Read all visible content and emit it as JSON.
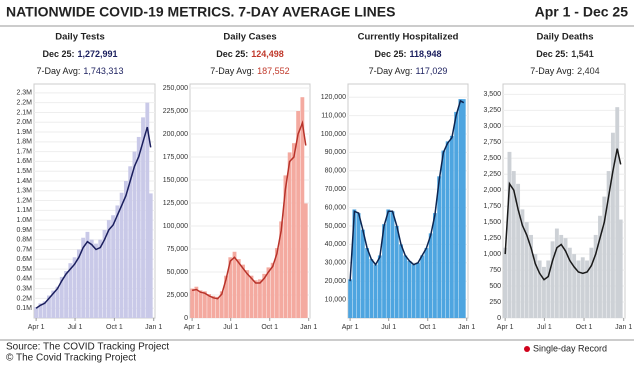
{
  "title": "NATIONWIDE COVID-19 METRICS. 7-DAY AVERAGE LINES",
  "date_range": "Apr 1 - Dec 25",
  "source": "Source: The COVID Tracking Project",
  "credit": "© The Covid Tracking Project",
  "record_legend": "Single-day Record",
  "chart_data": [
    {
      "type": "bar-line",
      "title": "Daily Tests",
      "latest_label": "Dec 25:",
      "latest_value": "1,272,991",
      "avg_label": "7-Day Avg:",
      "avg_value": "1,743,313",
      "bar_color": "#c9c9e8",
      "line_color": "#1b1f5e",
      "value_color": "#1b1f5e",
      "x": [
        0,
        10,
        20,
        30,
        40,
        50,
        60,
        70,
        80,
        90,
        100,
        110,
        120,
        130,
        140,
        150,
        160,
        170,
        180,
        190,
        200,
        210,
        220,
        230,
        240,
        250,
        260,
        268
      ],
      "values": [
        110000,
        150000,
        170000,
        230000,
        280000,
        320000,
        420000,
        480000,
        560000,
        620000,
        700000,
        820000,
        880000,
        800000,
        760000,
        800000,
        900000,
        1000000,
        1050000,
        1150000,
        1280000,
        1400000,
        1550000,
        1700000,
        1850000,
        2050000,
        2200000,
        1272991
      ],
      "line_values": [
        100000,
        130000,
        150000,
        200000,
        250000,
        300000,
        380000,
        450000,
        500000,
        550000,
        620000,
        720000,
        780000,
        750000,
        700000,
        720000,
        800000,
        900000,
        950000,
        1050000,
        1150000,
        1250000,
        1400000,
        1550000,
        1650000,
        1800000,
        1950000,
        1743313
      ],
      "xlim": [
        -5,
        278
      ],
      "xticks": [
        {
          "value": 0,
          "label": "Apr 1"
        },
        {
          "value": 91,
          "label": "Jul 1"
        },
        {
          "value": 183,
          "label": "Oct 1"
        },
        {
          "value": 275,
          "label": "Jan 1"
        }
      ],
      "ylim": [
        0,
        2350000
      ],
      "yticks": [
        {
          "value": 100000,
          "label": "0.1M"
        },
        {
          "value": 200000,
          "label": "0.2M"
        },
        {
          "value": 300000,
          "label": "0.3M"
        },
        {
          "value": 400000,
          "label": "0.4M"
        },
        {
          "value": 500000,
          "label": "0.5M"
        },
        {
          "value": 600000,
          "label": "0.6M"
        },
        {
          "value": 700000,
          "label": "0.7M"
        },
        {
          "value": 800000,
          "label": "0.8M"
        },
        {
          "value": 900000,
          "label": "0.9M"
        },
        {
          "value": 1000000,
          "label": "1.0M"
        },
        {
          "value": 1100000,
          "label": "1.1M"
        },
        {
          "value": 1200000,
          "label": "1.2M"
        },
        {
          "value": 1300000,
          "label": "1.3M"
        },
        {
          "value": 1400000,
          "label": "1.4M"
        },
        {
          "value": 1500000,
          "label": "1.5M"
        },
        {
          "value": 1600000,
          "label": "1.6M"
        },
        {
          "value": 1700000,
          "label": "1.7M"
        },
        {
          "value": 1800000,
          "label": "1.8M"
        },
        {
          "value": 1900000,
          "label": "1.9M"
        },
        {
          "value": 2000000,
          "label": "2.0M"
        },
        {
          "value": 2100000,
          "label": "2.1M"
        },
        {
          "value": 2200000,
          "label": "2.2M"
        },
        {
          "value": 2300000,
          "label": "2.3M"
        }
      ]
    },
    {
      "type": "bar-line",
      "title": "Daily Cases",
      "latest_label": "Dec 25:",
      "latest_value": "124,498",
      "avg_label": "7-Day Avg:",
      "avg_value": "187,552",
      "bar_color": "#f4aaa0",
      "line_color": "#b8332a",
      "value_color": "#c0392b",
      "x": [
        0,
        10,
        20,
        30,
        40,
        50,
        60,
        70,
        80,
        90,
        100,
        110,
        120,
        130,
        140,
        150,
        160,
        170,
        180,
        190,
        200,
        210,
        220,
        230,
        240,
        250,
        260,
        268
      ],
      "values": [
        32000,
        34000,
        30000,
        29000,
        26000,
        24000,
        23000,
        29000,
        46000,
        66000,
        72000,
        64000,
        58000,
        52000,
        46000,
        41000,
        42000,
        48000,
        55000,
        60000,
        76000,
        105000,
        155000,
        180000,
        190000,
        225000,
        240000,
        124498
      ],
      "line_values": [
        30000,
        31000,
        28000,
        27000,
        24000,
        22000,
        21000,
        26000,
        42000,
        62000,
        66000,
        60000,
        54000,
        48000,
        43000,
        38000,
        38000,
        43000,
        50000,
        56000,
        70000,
        95000,
        140000,
        170000,
        175000,
        200000,
        212000,
        187552
      ],
      "xlim": [
        -5,
        278
      ],
      "xticks": [
        {
          "value": 0,
          "label": "Apr 1"
        },
        {
          "value": 91,
          "label": "Jul 1"
        },
        {
          "value": 183,
          "label": "Oct 1"
        },
        {
          "value": 275,
          "label": "Jan 1"
        }
      ],
      "ylim": [
        0,
        250000
      ],
      "yticks": [
        0,
        {
          "value": 25000,
          "label": "25,000"
        },
        {
          "value": 50000,
          "label": "50,000"
        },
        {
          "value": 75000,
          "label": "75,000"
        },
        {
          "value": 100000,
          "label": "100,000"
        },
        {
          "value": 125000,
          "label": "125,000"
        },
        {
          "value": 150000,
          "label": "150,000"
        },
        {
          "value": 175000,
          "label": "175,000"
        },
        {
          "value": 200000,
          "label": "200,000"
        },
        {
          "value": 225000,
          "label": "225,000"
        },
        {
          "value": 250000,
          "label": "250,000"
        }
      ]
    },
    {
      "type": "bar-line",
      "title": "Currently Hospitalized",
      "latest_label": "Dec 25:",
      "latest_value": "118,948",
      "avg_label": "7-Day Avg:",
      "avg_value": "117,029",
      "bar_color": "#4ea5e0",
      "line_color": "#0d2550",
      "value_color": "#1b1f5e",
      "x": [
        0,
        10,
        20,
        30,
        40,
        50,
        60,
        70,
        80,
        90,
        100,
        110,
        120,
        130,
        140,
        150,
        160,
        170,
        180,
        190,
        200,
        210,
        220,
        230,
        240,
        250,
        260,
        268
      ],
      "values": [
        21000,
        59000,
        57000,
        48000,
        38000,
        32000,
        29000,
        34000,
        51000,
        59000,
        58000,
        50000,
        40000,
        34000,
        31000,
        29000,
        30000,
        34000,
        38000,
        46000,
        57000,
        77000,
        91000,
        96000,
        99000,
        112000,
        119000,
        118948
      ],
      "line_values": [
        20000,
        58000,
        57000,
        48000,
        38000,
        32000,
        29000,
        33000,
        50000,
        58000,
        58000,
        50000,
        40000,
        34000,
        31000,
        29000,
        30000,
        34000,
        38000,
        45000,
        56000,
        75000,
        90000,
        95000,
        98000,
        110000,
        118000,
        117029
      ],
      "xlim": [
        -5,
        278
      ],
      "xticks": [
        {
          "value": 0,
          "label": "Apr 1"
        },
        {
          "value": 91,
          "label": "Jul 1"
        },
        {
          "value": 183,
          "label": "Oct 1"
        },
        {
          "value": 275,
          "label": "Jan 1"
        }
      ],
      "ylim": [
        0,
        125000
      ],
      "yticks": [
        {
          "value": 10000,
          "label": "10,000"
        },
        {
          "value": 20000,
          "label": "20,000"
        },
        {
          "value": 30000,
          "label": "30,000"
        },
        {
          "value": 40000,
          "label": "40,000"
        },
        {
          "value": 50000,
          "label": "50,000"
        },
        {
          "value": 60000,
          "label": "60,000"
        },
        {
          "value": 70000,
          "label": "70,000"
        },
        {
          "value": 80000,
          "label": "80,000"
        },
        {
          "value": 90000,
          "label": "90,000"
        },
        {
          "value": 100000,
          "label": "100,000"
        },
        {
          "value": 110000,
          "label": "110,000"
        },
        {
          "value": 120000,
          "label": "120,000"
        }
      ]
    },
    {
      "type": "bar-line",
      "title": "Daily Deaths",
      "latest_label": "Dec 25:",
      "latest_value": "1,541",
      "avg_label": "7-Day Avg:",
      "avg_value": "2,404",
      "bar_color": "#cdd1d6",
      "line_color": "#1a1a1a",
      "value_color": "#333333",
      "x": [
        0,
        10,
        20,
        30,
        40,
        50,
        60,
        70,
        80,
        90,
        100,
        110,
        120,
        130,
        140,
        150,
        160,
        170,
        180,
        190,
        200,
        210,
        220,
        230,
        240,
        250,
        260,
        268
      ],
      "values": [
        1100,
        2600,
        2300,
        2100,
        1700,
        1500,
        1300,
        1000,
        900,
        800,
        900,
        1200,
        1400,
        1300,
        1250,
        1100,
        1000,
        900,
        950,
        900,
        1100,
        1300,
        1600,
        1900,
        2300,
        2900,
        3300,
        1541
      ],
      "line_values": [
        1000,
        2100,
        2000,
        1700,
        1450,
        1300,
        1100,
        850,
        700,
        600,
        650,
        900,
        1100,
        1150,
        1050,
        900,
        800,
        720,
        700,
        720,
        820,
        1000,
        1250,
        1500,
        1900,
        2300,
        2650,
        2404
      ],
      "xlim": [
        -5,
        278
      ],
      "xticks": [
        {
          "value": 0,
          "label": "Apr 1"
        },
        {
          "value": 91,
          "label": "Jul 1"
        },
        {
          "value": 183,
          "label": "Oct 1"
        },
        {
          "value": 275,
          "label": "Jan 1"
        }
      ],
      "ylim": [
        0,
        3600
      ],
      "yticks": [
        0,
        250,
        500,
        750,
        {
          "value": 1000,
          "label": "1,000"
        },
        {
          "value": 1250,
          "label": "1,250"
        },
        {
          "value": 1500,
          "label": "1,500"
        },
        {
          "value": 1750,
          "label": "1,750"
        },
        {
          "value": 2000,
          "label": "2,000"
        },
        {
          "value": 2250,
          "label": "2,250"
        },
        {
          "value": 2500,
          "label": "2,500"
        },
        {
          "value": 2750,
          "label": "2,750"
        },
        {
          "value": 3000,
          "label": "3,000"
        },
        {
          "value": 3250,
          "label": "3,250"
        },
        {
          "value": 3500,
          "label": "3,500"
        }
      ]
    }
  ]
}
